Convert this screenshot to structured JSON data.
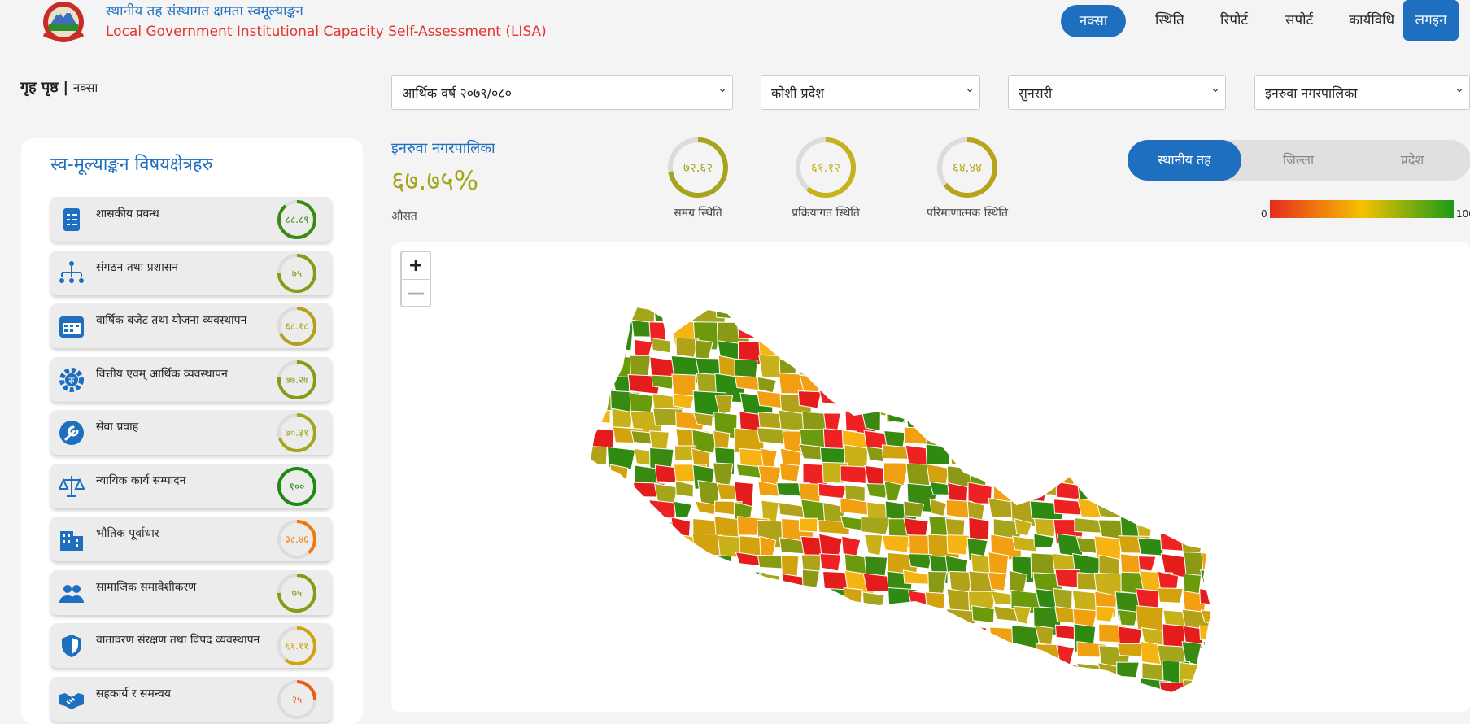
{
  "header": {
    "title_np": "स्थानीय तह संस्थागत क्षमता स्वमूल्याङ्कन",
    "title_en": "Local Government Institutional Capacity Self-Assessment (LISA)"
  },
  "nav": {
    "map": "नक्सा",
    "status": "स्थिति",
    "report": "रिपोर्ट",
    "support": "सपोर्ट",
    "procedure": "कार्यविधि",
    "login": "लगइन"
  },
  "breadcrumb": {
    "home": "गृह पृष्ठ",
    "separator": "|",
    "current": "नक्सा"
  },
  "filters": {
    "fiscal_year": "आर्थिक वर्ष २०७९/०८०",
    "province": "कोशी प्रदेश",
    "district": "सुनसरी",
    "municipality": "इनरुवा नगरपालिका"
  },
  "panel": {
    "title": "स्व-मूल्याङ्कन विषयक्षेत्रहरु",
    "categories": [
      {
        "label": "शासकीय प्रवन्ध",
        "score": "८८.८९",
        "value": 88.89,
        "color": "#3a8a12",
        "icon": "document-checklist-icon"
      },
      {
        "label": "संगठन तथा प्रशासन",
        "score": "७५",
        "value": 75,
        "color": "#8a9a14",
        "icon": "org-chart-icon"
      },
      {
        "label": "वार्षिक बजेट तथा योजना व्यवस्थापन",
        "score": "६८.१८",
        "value": 68.18,
        "color": "#b2a21a",
        "icon": "calendar-icon"
      },
      {
        "label": "वित्तीय एवम् आर्थिक व्यवस्थापन",
        "score": "७७.२७",
        "value": 77.27,
        "color": "#8a9a14",
        "icon": "rupee-gear-icon"
      },
      {
        "label": "सेवा प्रवाह",
        "score": "७०.३१",
        "value": 70.31,
        "color": "#a5a51c",
        "icon": "wrench-icon"
      },
      {
        "label": "न्यायिक कार्य सम्पादन",
        "score": "१००",
        "value": 100,
        "color": "#1e8a10",
        "icon": "scales-icon"
      },
      {
        "label": "भौतिक पूर्वाधार",
        "score": "३८.४६",
        "value": 38.46,
        "color": "#f07a10",
        "icon": "building-icon"
      },
      {
        "label": "सामाजिक समावेशीकरण",
        "score": "७५",
        "value": 75,
        "color": "#8a9a14",
        "icon": "people-icon"
      },
      {
        "label": "वातावरण संरक्षण तथा विपद व्यवस्थापन",
        "score": "६१.११",
        "value": 61.11,
        "color": "#d2a20f",
        "icon": "shield-icon"
      },
      {
        "label": "सहकार्य र समन्वय",
        "score": "२५",
        "value": 25,
        "color": "#f05a10",
        "icon": "handshake-icon"
      }
    ]
  },
  "summary": {
    "municipality": "इनरुवा नगरपालिका",
    "average": "६७.७५%",
    "average_label": "औसत",
    "stats": [
      {
        "score": "७२.६२",
        "value": 72.62,
        "label": "समग्र स्थिति",
        "color": "#a5a51c"
      },
      {
        "score": "६१.१२",
        "value": 61.12,
        "label": "प्रक्रियागत स्थिति",
        "color": "#c6b21c"
      },
      {
        "score": "६४.४४",
        "value": 64.44,
        "label": "परिमाणात्मक स्थिति",
        "color": "#b8a41a"
      }
    ]
  },
  "level_toggle": {
    "local": "स्थानीय तह",
    "district": "जिल्ला",
    "province": "प्रदेश",
    "selected": "local"
  },
  "legend": {
    "min": "0",
    "max": "100",
    "colors": [
      "#e52b1f",
      "#f6c100",
      "#1a9b17"
    ]
  },
  "map_controls": {
    "zoom_in": "+",
    "zoom_out": "—"
  }
}
